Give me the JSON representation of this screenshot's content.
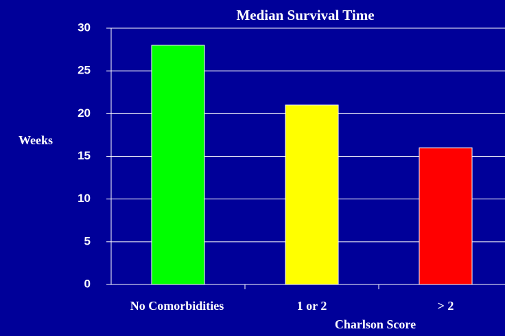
{
  "chart_data": {
    "type": "bar",
    "title": "Median Survival Time",
    "y_label": "Weeks",
    "x_label": "Charlson Score",
    "categories": [
      "No Comorbidities",
      "1 or 2",
      "> 2"
    ],
    "values": [
      28,
      21,
      16
    ],
    "colors": [
      "#00ff00",
      "#ffff00",
      "#ff0000"
    ],
    "ylim": [
      0,
      30
    ],
    "yticks": [
      0,
      5,
      10,
      15,
      20,
      25,
      30
    ],
    "grid": true
  }
}
